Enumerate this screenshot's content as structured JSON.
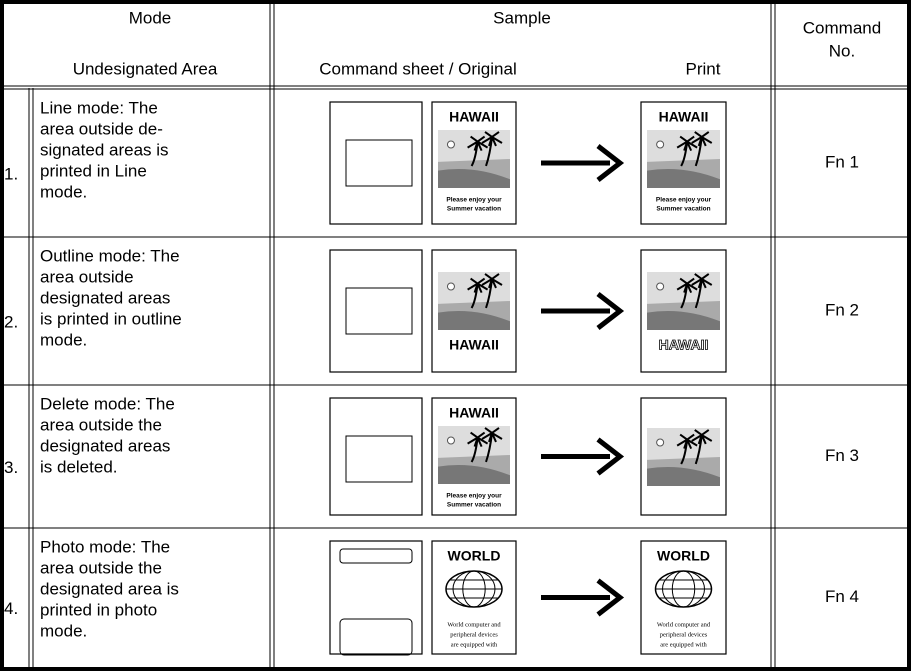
{
  "header": {
    "mode": "Mode",
    "area": "Undesignated Area",
    "sample": "Sample",
    "original": "Command sheet / Original",
    "print": "Print",
    "command": [
      "Command",
      "No."
    ]
  },
  "rows": [
    {
      "number": "1.",
      "description": [
        "Line mode: The",
        "area outside de-",
        "signated areas is",
        "printed in Line",
        "mode."
      ],
      "original": {
        "title": "HAWAII",
        "caption": [
          "Please enjoy your",
          "Summer vacation"
        ]
      },
      "print": {
        "title": "HAWAII",
        "caption": [
          "Please enjoy your",
          "Summer vacation"
        ]
      },
      "command": "Fn 1"
    },
    {
      "number": "2.",
      "description": [
        "Outline mode: The",
        "area outside",
        "designated areas",
        "is printed in outline",
        "mode."
      ],
      "original": {
        "title": "HAWAII"
      },
      "print": {
        "title": "HAWAII"
      },
      "command": "Fn 2"
    },
    {
      "number": "3.",
      "description": [
        "Delete mode: The",
        "area outside the",
        "designated areas",
        "is deleted."
      ],
      "original": {
        "title": "HAWAII",
        "caption": [
          "Please enjoy your",
          "Summer vacation"
        ]
      },
      "print": {},
      "command": "Fn 3"
    },
    {
      "number": "4.",
      "description": [
        "Photo mode: The",
        "area outside the",
        "designated area is",
        "printed in photo",
        "mode."
      ],
      "original": {
        "title": "WORLD",
        "caption": [
          "World computer and",
          "peripheral devices",
          "are equipped with"
        ]
      },
      "print": {
        "title": "WORLD",
        "caption": [
          "World computer and",
          "peripheral devices",
          "are equipped with"
        ]
      },
      "command": "Fn 4"
    }
  ]
}
